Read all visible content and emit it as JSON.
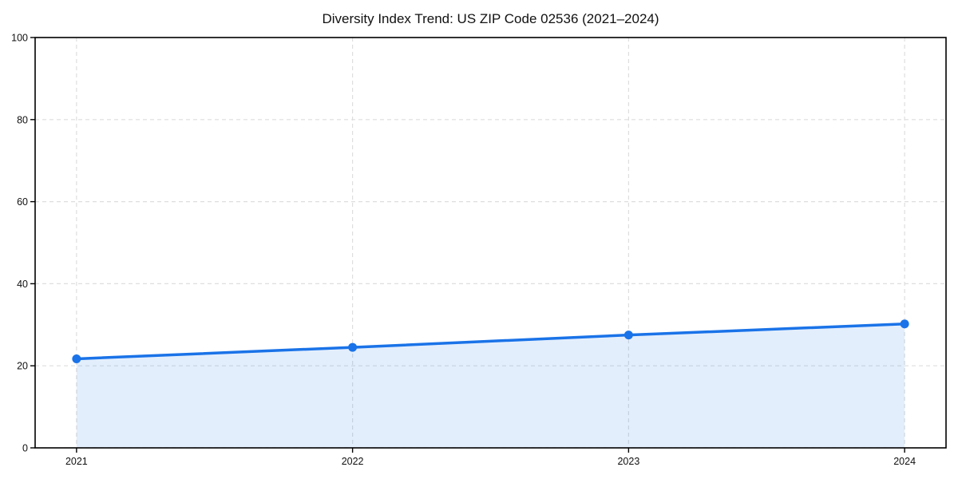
{
  "chart_data": {
    "type": "area",
    "title": "Diversity Index Trend: US ZIP Code 02536 (2021–2024)",
    "xlabel": "",
    "ylabel": "",
    "x": [
      2021,
      2022,
      2023,
      2024
    ],
    "series": [
      {
        "name": "Diversity Index",
        "values": [
          21.7,
          24.5,
          27.5,
          30.2
        ]
      }
    ],
    "ylim": [
      0,
      100
    ],
    "yticks": [
      0,
      20,
      40,
      60,
      80,
      100
    ],
    "xticks": [
      2021,
      2022,
      2023,
      2024
    ],
    "xtick_labels": [
      "2021",
      "2022",
      "2023",
      "2024"
    ],
    "x_margin_frac": 0.05,
    "grid": true,
    "grid_style": "dashed",
    "legend": false,
    "colors": {
      "line": "#1a73e8",
      "fill": "#1a73e8",
      "fill_opacity": 0.12,
      "grid": "#dedede",
      "axis": "#000000",
      "text": "#111111",
      "background": "#ffffff"
    }
  }
}
